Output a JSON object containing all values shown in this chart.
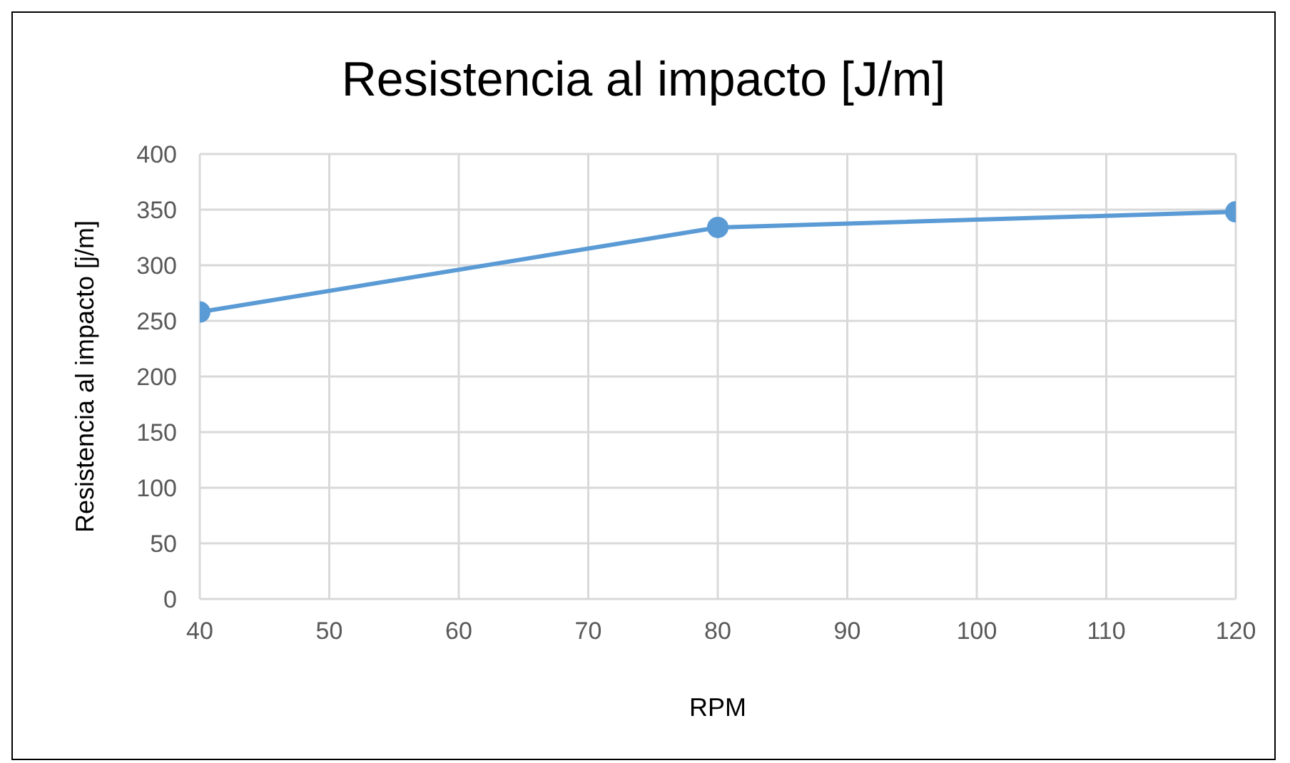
{
  "chart_data": {
    "type": "line",
    "title": "Resistencia al impacto [J/m]",
    "xlabel": "RPM",
    "ylabel": "Resistencia al impacto [j/m]",
    "x": [
      40,
      80,
      120
    ],
    "series": [
      {
        "color": "#5b9bd5",
        "values": [
          258,
          334,
          348
        ]
      }
    ],
    "xlim": [
      40,
      120
    ],
    "xticks": [
      40,
      50,
      60,
      70,
      80,
      90,
      100,
      110,
      120
    ],
    "ylim": [
      0,
      400
    ],
    "yticks": [
      0,
      50,
      100,
      150,
      200,
      250,
      300,
      350,
      400
    ],
    "grid": true,
    "legend": false,
    "marker": "circle",
    "line_style": "solid"
  }
}
